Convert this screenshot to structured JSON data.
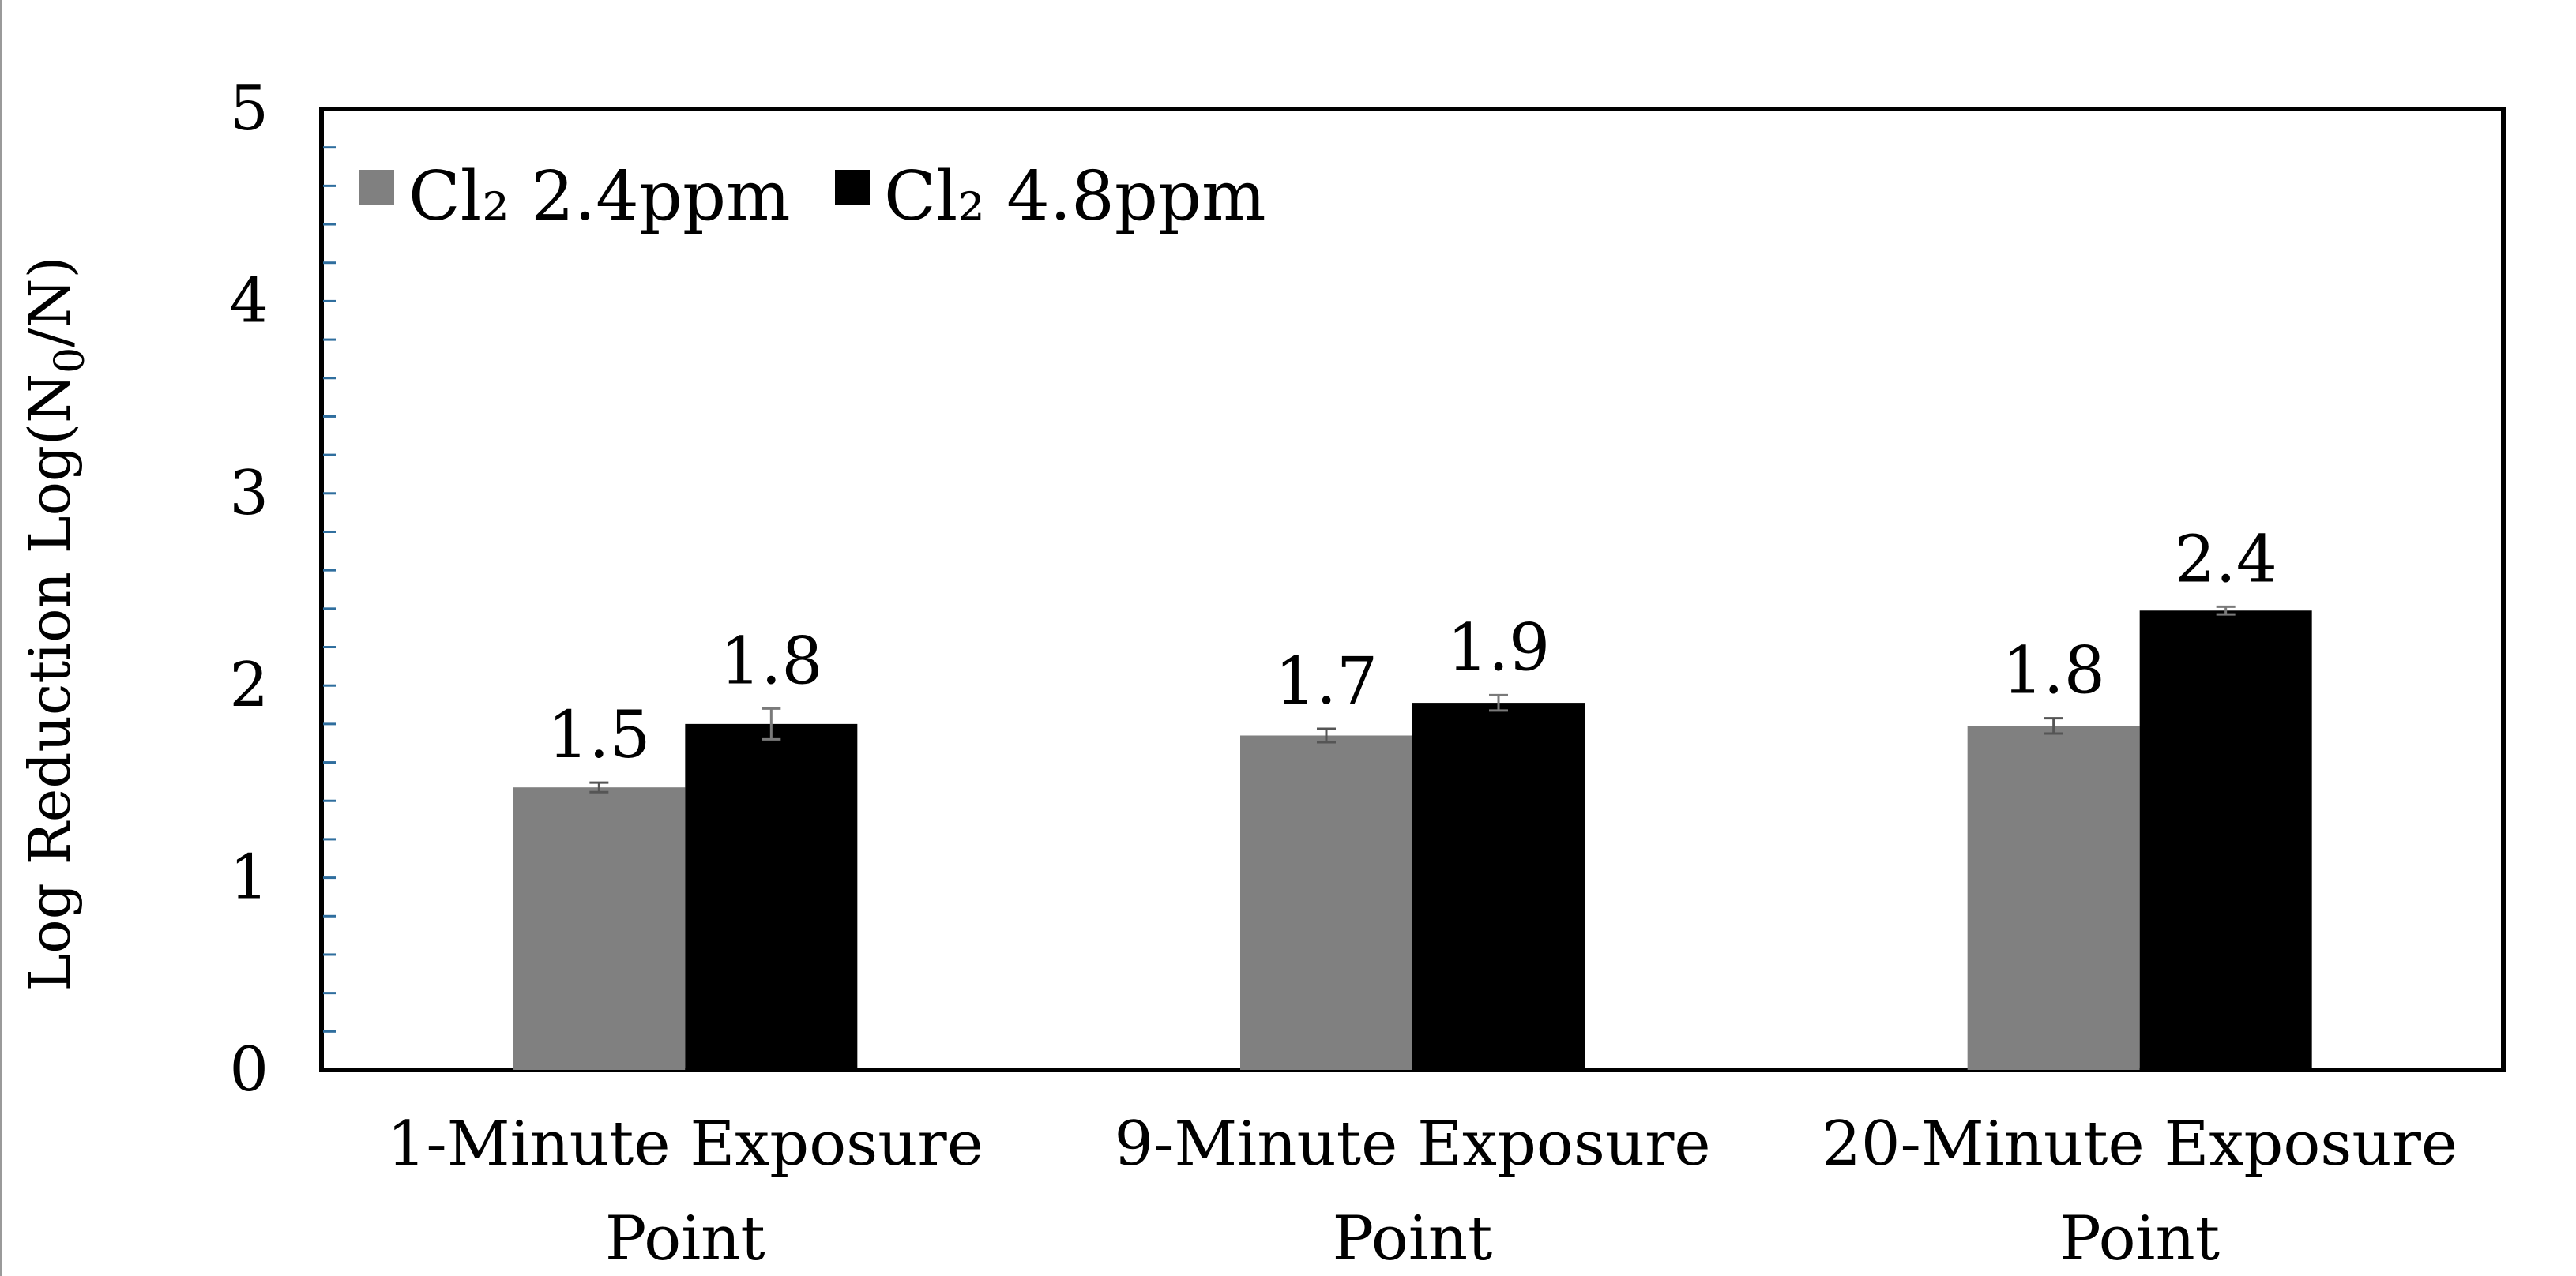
{
  "chart_data": {
    "type": "bar",
    "title": "",
    "xlabel": "",
    "ylabel": "Log Reduction Log(N",
    "ylabel_sub": "0",
    "ylabel_tail": "/N)",
    "ylim": [
      0,
      5
    ],
    "yticks": [
      "0",
      "1",
      "2",
      "3",
      "4",
      "5"
    ],
    "grid": false,
    "legend_position": "top-left",
    "categories": [
      [
        "1-Minute Exposure",
        "Point"
      ],
      [
        "9-Minute Exposure",
        "Point"
      ],
      [
        "20-Minute Exposure",
        "Point"
      ]
    ],
    "series": [
      {
        "name": "Cl₂ 2.4ppm",
        "color": "#808080",
        "values": [
          1.47,
          1.74,
          1.79
        ],
        "errors": [
          0.025,
          0.035,
          0.04
        ],
        "labels": [
          "1.5",
          "1.7",
          "1.8"
        ]
      },
      {
        "name": "Cl₂ 4.8ppm",
        "color": "#000000",
        "values": [
          1.8,
          1.91,
          2.39
        ],
        "errors": [
          0.08,
          0.04,
          0.02
        ],
        "labels": [
          "1.8",
          "1.9",
          "2.4"
        ]
      }
    ]
  }
}
